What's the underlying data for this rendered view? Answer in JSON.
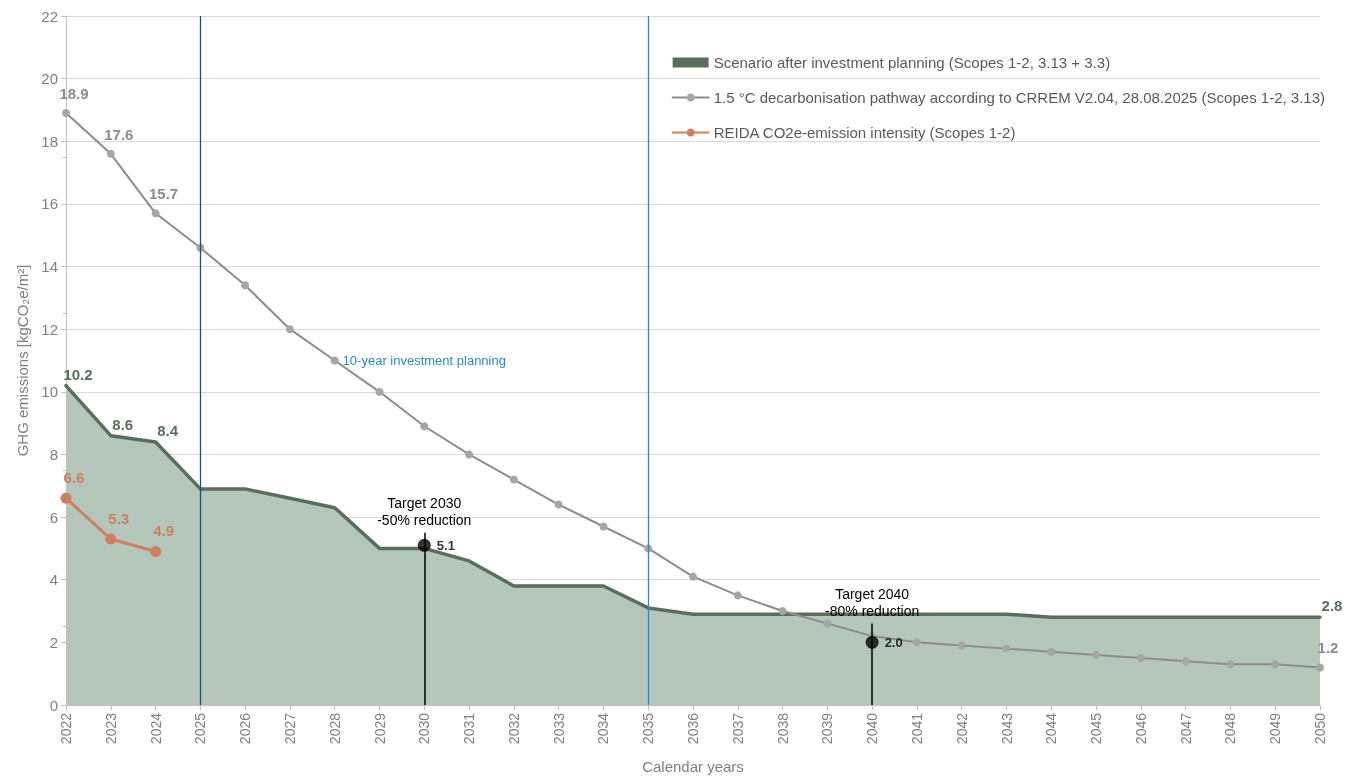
{
  "chart_data": {
    "type": "line",
    "xlabel": "Calendar years",
    "ylabel": "GHG emissions [kgCO₂e/m²]",
    "categories": [
      "2022",
      "2023",
      "2024",
      "2025",
      "2026",
      "2027",
      "2028",
      "2029",
      "2030",
      "2031",
      "2032",
      "2033",
      "2034",
      "2035",
      "2036",
      "2037",
      "2038",
      "2039",
      "2040",
      "2041",
      "2042",
      "2043",
      "2044",
      "2045",
      "2046",
      "2047",
      "2048",
      "2049",
      "2050"
    ],
    "series": [
      {
        "type": "area",
        "name": "Scenario after investment planning (Scopes 1-2, 3.13 + 3.3)",
        "color": "#5a6e5c",
        "values": [
          10.2,
          8.6,
          8.4,
          6.9,
          6.9,
          6.6,
          6.3,
          5.0,
          5.0,
          4.6,
          3.8,
          3.8,
          3.8,
          3.1,
          2.9,
          2.9,
          2.9,
          2.9,
          2.9,
          2.9,
          2.9,
          2.9,
          2.8,
          2.8,
          2.8,
          2.8,
          2.8,
          2.8,
          2.8
        ],
        "value_labels": [
          "10.2",
          "8.6",
          "8.4",
          null,
          null,
          null,
          null,
          null,
          null,
          null,
          null,
          null,
          null,
          null,
          null,
          null,
          null,
          null,
          null,
          null,
          null,
          null,
          null,
          null,
          null,
          null,
          null,
          null,
          "2.8"
        ]
      },
      {
        "name": "1.5 °C decarbonisation pathway according to CRREM V2.04, 28.08.2025 (Scopes 1-2, 3.13)",
        "color": "#8c8c8c",
        "marker": "circle",
        "values": [
          18.9,
          17.6,
          15.7,
          14.6,
          13.4,
          12.0,
          11.0,
          10.0,
          8.9,
          8.0,
          7.2,
          6.4,
          5.7,
          5.0,
          4.1,
          3.5,
          3.0,
          2.6,
          2.2,
          2.0,
          1.9,
          1.8,
          1.7,
          1.6,
          1.5,
          1.4,
          1.3,
          1.3,
          1.2
        ],
        "value_labels": [
          "18.9",
          "17.6",
          "15.7",
          null,
          null,
          null,
          null,
          null,
          null,
          null,
          null,
          null,
          null,
          null,
          null,
          null,
          null,
          null,
          null,
          null,
          null,
          null,
          null,
          null,
          null,
          null,
          null,
          null,
          "1.2"
        ]
      },
      {
        "name": "REIDA CO2e-emission intensity (Scopes 1-2)",
        "color": "#cc8060",
        "marker": "circle",
        "values": [
          6.6,
          5.3,
          4.9,
          null,
          null,
          null,
          null,
          null,
          null,
          null,
          null,
          null,
          null,
          null,
          null,
          null,
          null,
          null,
          null,
          null,
          null,
          null,
          null,
          null,
          null,
          null,
          null,
          null,
          null
        ],
        "value_labels": [
          "6.6",
          "5.3",
          "4.9",
          null,
          null,
          null,
          null,
          null,
          null,
          null,
          null,
          null,
          null,
          null,
          null,
          null,
          null,
          null,
          null,
          null,
          null,
          null,
          null,
          null,
          null,
          null,
          null,
          null,
          null
        ]
      },
      {
        "type": "scatter",
        "color": "#000000",
        "marker": "circle",
        "values": [
          null,
          null,
          null,
          null,
          null,
          null,
          null,
          null,
          5.1,
          null,
          null,
          null,
          null,
          null,
          null,
          null,
          null,
          null,
          2.0,
          null,
          null,
          null,
          null,
          null,
          null,
          null,
          null,
          null,
          null
        ],
        "errors": [
          null,
          null,
          null,
          null,
          null,
          null,
          null,
          null,
          [
            0,
            5.5
          ],
          null,
          null,
          null,
          null,
          null,
          null,
          null,
          null,
          null,
          [
            0,
            2.6
          ],
          null,
          null,
          null,
          null,
          null,
          null,
          null,
          null,
          null,
          null
        ],
        "value_labels": [
          null,
          null,
          null,
          null,
          null,
          null,
          null,
          null,
          "5.1",
          null,
          null,
          null,
          null,
          null,
          null,
          null,
          null,
          null,
          "2.0",
          null,
          null,
          null,
          null,
          null,
          null,
          null,
          null,
          null,
          null
        ]
      }
    ],
    "annotations": [
      "Target 2030\n-50% reduction",
      "Target 2040\n-80% reduction",
      "10-year investment planning"
    ],
    "ref_lines": [
      {
        "axis": "x",
        "value": "2025",
        "label": null,
        "color": "#1f4e79"
      },
      {
        "axis": "x",
        "value": "2035",
        "label": null,
        "color": "#2e86c9"
      }
    ],
    "ylim": [
      0,
      22
    ],
    "yticks": [
      0,
      2,
      4,
      6,
      8,
      10,
      12,
      14,
      16,
      18,
      20,
      22
    ],
    "grid": "y",
    "legend": "top right"
  }
}
